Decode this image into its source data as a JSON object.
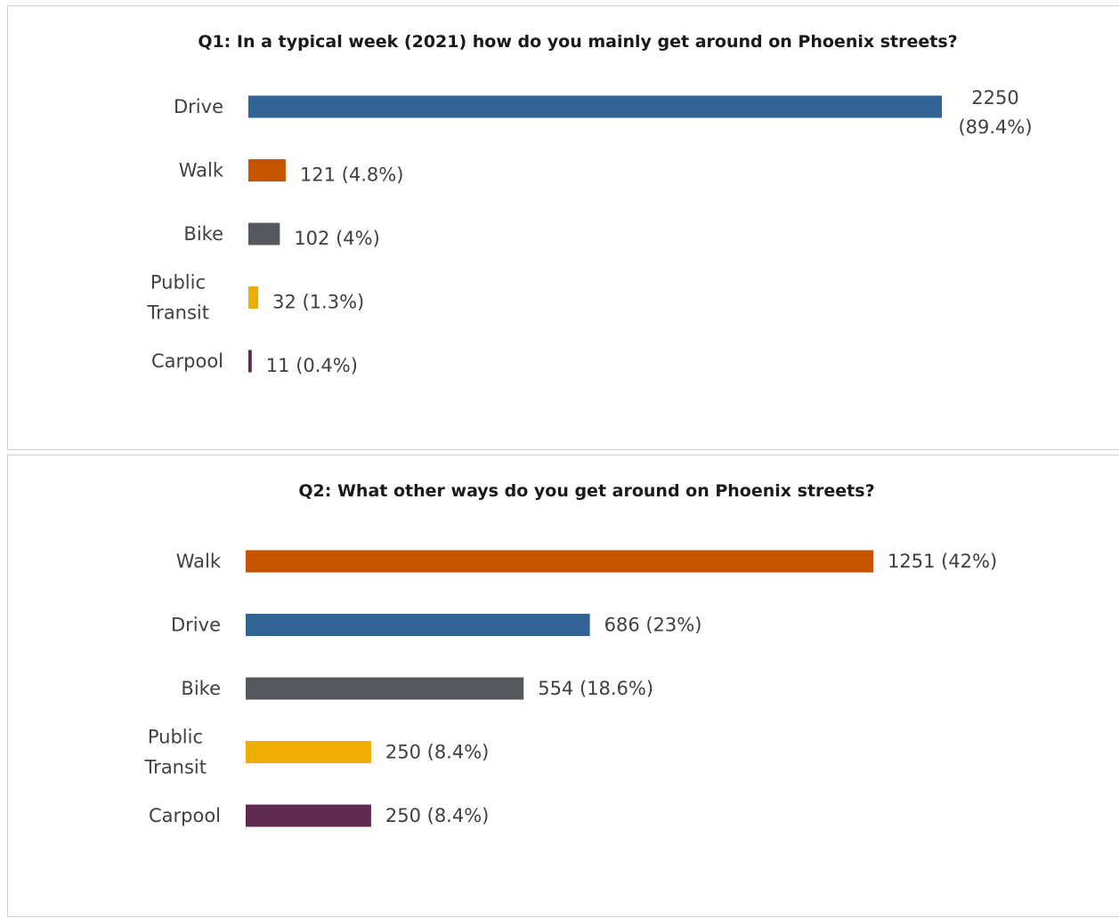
{
  "chart_data": [
    {
      "type": "bar",
      "orientation": "horizontal",
      "title": "Q1: In a typical week (2021) how do you mainly get around on Phoenix streets?",
      "xlabel": "",
      "ylabel": "",
      "categories": [
        "Drive",
        "Walk",
        "Bike",
        "Public Transit",
        "Carpool"
      ],
      "values": [
        2250,
        121,
        102,
        32,
        11
      ],
      "data_labels": [
        "2250 (89.4%)",
        "121 (4.8%)",
        "102 (4%)",
        "32 (1.3%)",
        "11 (0.4%)"
      ],
      "colors": [
        "#316395",
        "#C65300",
        "#55595E",
        "#EDAE00",
        "#5E2A4F"
      ],
      "xlim": [
        0,
        2250
      ],
      "grid": false,
      "legend": "none"
    },
    {
      "type": "bar",
      "orientation": "horizontal",
      "title": "Q2: What other ways do you get around on Phoenix streets?",
      "xlabel": "",
      "ylabel": "",
      "categories": [
        "Walk",
        "Drive",
        "Bike",
        "Public Transit",
        "Carpool"
      ],
      "values": [
        1251,
        686,
        554,
        250,
        250
      ],
      "data_labels": [
        "1251 (42%)",
        "686 (23%)",
        "554 (18.6%)",
        "250 (8.4%)",
        "250 (8.4%)"
      ],
      "colors": [
        "#C65300",
        "#316395",
        "#55595E",
        "#EDAE00",
        "#5E2A4F"
      ],
      "xlim": [
        0,
        2250
      ],
      "grid": false,
      "legend": "none"
    }
  ]
}
